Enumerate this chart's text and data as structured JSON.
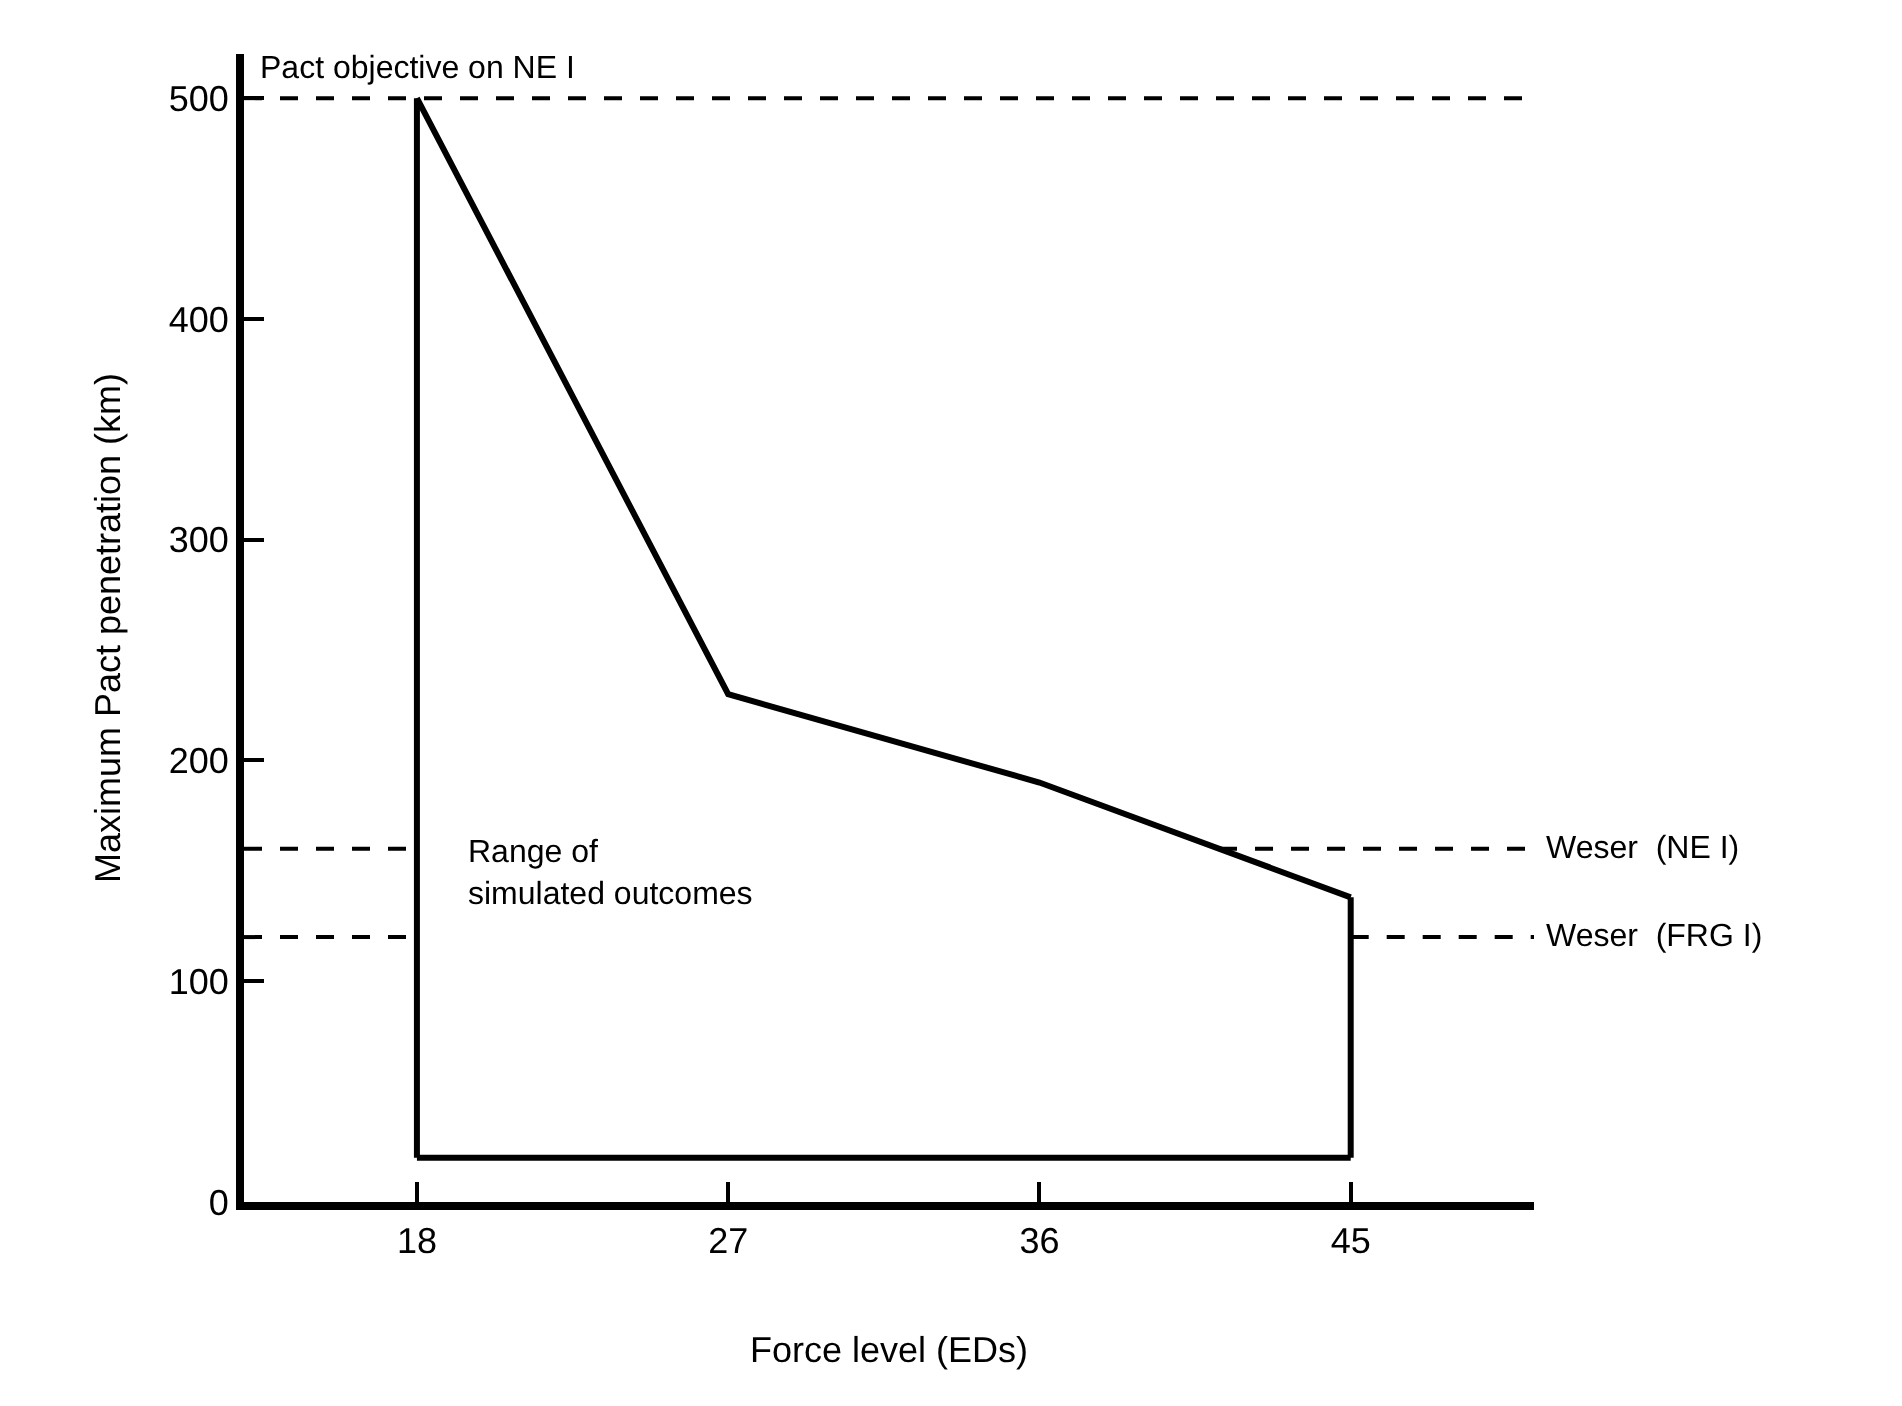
{
  "chart_data": {
    "type": "line",
    "xlabel": "Force level (EDs)",
    "ylabel": "Maximum Pact penetration (km)",
    "xlim": [
      13,
      50.3
    ],
    "xticks": [
      18,
      27,
      36,
      45
    ],
    "ylim": [
      0,
      520
    ],
    "yticks": [
      0,
      100,
      200,
      300,
      400,
      500
    ],
    "series": [
      {
        "color": "#000000",
        "x": [
          18,
          27,
          36,
          45
        ],
        "values": [
          500,
          230,
          190,
          138
        ]
      },
      {
        "color": "#000000",
        "x": [
          18,
          45
        ],
        "values": [
          20,
          20
        ]
      },
      {
        "color": "#000000",
        "x": [
          18,
          18
        ],
        "values": [
          20,
          500
        ]
      },
      {
        "color": "#000000",
        "x": [
          45,
          45
        ],
        "values": [
          20,
          138
        ]
      }
    ],
    "ref_lines": [
      {
        "axis": "y",
        "value": 500,
        "label": "Pact objective on NE I",
        "line_style": "dashed",
        "color": "#000000"
      },
      {
        "axis": "y",
        "value": 160,
        "label": "Weser  (NE I)",
        "line_style": "dashed",
        "color": "#000000"
      },
      {
        "axis": "y",
        "value": 120,
        "label": "Weser  (FRG I)",
        "line_style": "dashed",
        "color": "#000000"
      }
    ],
    "annotations": [
      "Range of\nsimulated outcomes"
    ],
    "marker": "none",
    "line_style": "solid"
  }
}
